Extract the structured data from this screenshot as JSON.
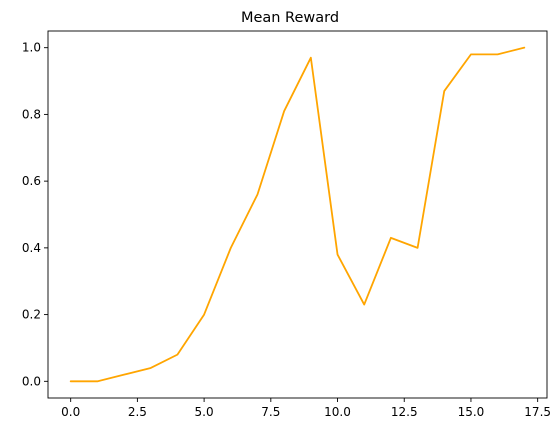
{
  "chart_data": {
    "type": "line",
    "title": "Mean Reward",
    "xlabel": "",
    "ylabel": "",
    "xlim": [
      -0.85,
      17.85
    ],
    "ylim": [
      -0.05,
      1.05
    ],
    "xticks": [
      0.0,
      2.5,
      5.0,
      7.5,
      10.0,
      12.5,
      15.0,
      17.5
    ],
    "xtick_labels": [
      "0.0",
      "2.5",
      "5.0",
      "7.5",
      "10.0",
      "12.5",
      "15.0",
      "17.5"
    ],
    "yticks": [
      0.0,
      0.2,
      0.4,
      0.6,
      0.8,
      1.0
    ],
    "ytick_labels": [
      "0.0",
      "0.2",
      "0.4",
      "0.6",
      "0.8",
      "1.0"
    ],
    "grid": false,
    "series": [
      {
        "color": "#FFA500",
        "x": [
          0,
          1,
          2,
          3,
          4,
          5,
          6,
          7,
          8,
          9,
          10,
          11,
          12,
          13,
          14,
          15,
          16,
          17
        ],
        "y": [
          0.0,
          0.0,
          0.02,
          0.04,
          0.08,
          0.2,
          0.4,
          0.56,
          0.81,
          0.97,
          0.38,
          0.23,
          0.43,
          0.4,
          0.87,
          0.98,
          0.98,
          1.0
        ]
      }
    ]
  }
}
